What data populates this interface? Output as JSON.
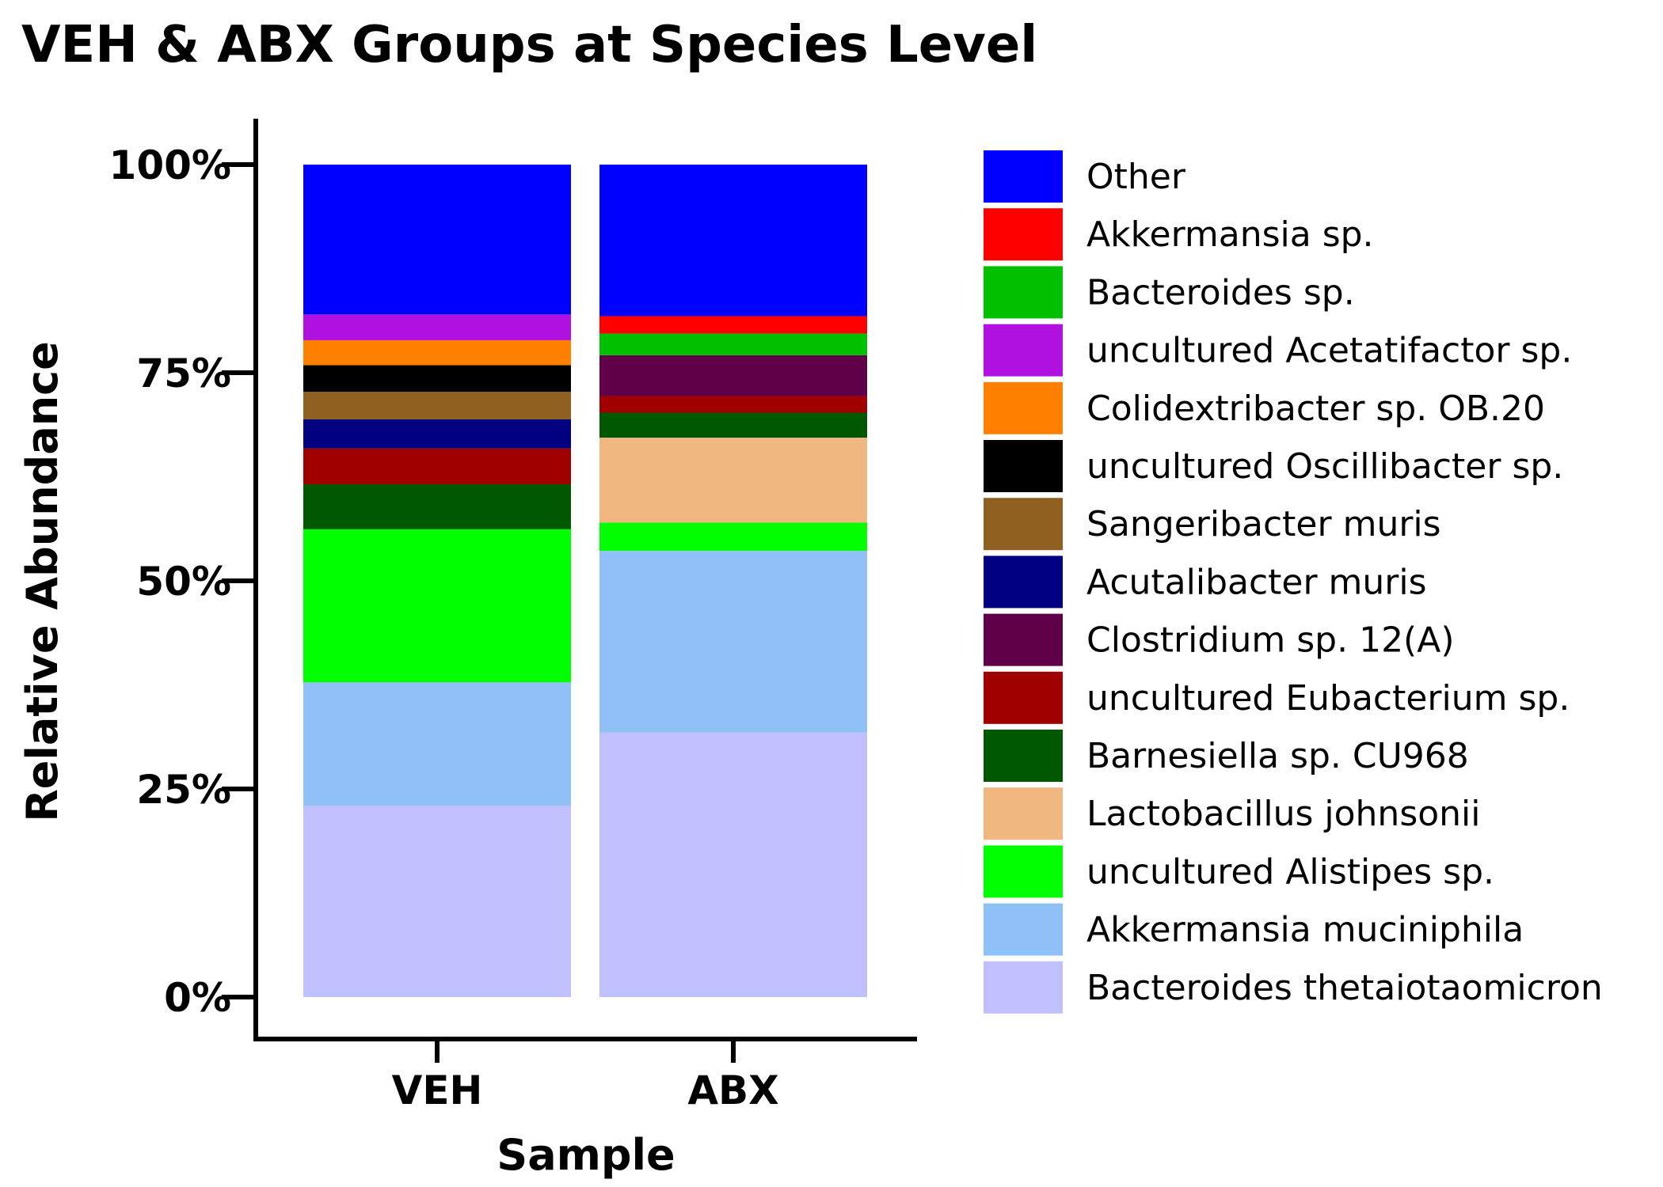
{
  "chart_data": {
    "type": "bar",
    "stacked": true,
    "title": "VEH & ABX Groups at Species Level",
    "xlabel": "Sample",
    "ylabel": "Relative Abundance",
    "ylim": [
      0,
      100
    ],
    "yticks": [
      "0%",
      "25%",
      "50%",
      "75%",
      "100%"
    ],
    "ytick_values": [
      0,
      25,
      50,
      75,
      100
    ],
    "categories": [
      "VEH",
      "ABX"
    ],
    "legend_position": "right",
    "series": [
      {
        "name": "Bacteroides thetaiotaomicron",
        "color": "#c0c0ff",
        "values": [
          23.0,
          31.8
        ]
      },
      {
        "name": "Akkermansia muciniphila",
        "color": "#90c0f8",
        "values": [
          14.8,
          21.8
        ]
      },
      {
        "name": "uncultured Alistipes sp.",
        "color": "#00ff00",
        "values": [
          18.4,
          3.4
        ]
      },
      {
        "name": "Lactobacillus johnsonii",
        "color": "#f0b880",
        "values": [
          0.0,
          10.2
        ]
      },
      {
        "name": "Barnesiella sp. CU968",
        "color": "#005800",
        "values": [
          5.4,
          3.0
        ]
      },
      {
        "name": "uncultured Eubacterium sp.",
        "color": "#a00000",
        "values": [
          4.3,
          2.0
        ]
      },
      {
        "name": "Clostridium sp. 12(A)",
        "color": "#600048",
        "values": [
          0.0,
          4.9
        ]
      },
      {
        "name": "Acutalibacter muris",
        "color": "#000080",
        "values": [
          3.5,
          0.0
        ]
      },
      {
        "name": "Sangeribacter muris",
        "color": "#906020",
        "values": [
          3.3,
          0.0
        ]
      },
      {
        "name": "uncultured Oscillibacter sp.",
        "color": "#000000",
        "values": [
          3.2,
          0.0
        ]
      },
      {
        "name": "Colidextribacter sp. OB.20",
        "color": "#ff8000",
        "values": [
          3.0,
          0.0
        ]
      },
      {
        "name": "uncultured Acetatifactor sp.",
        "color": "#b010e0",
        "values": [
          3.1,
          0.0
        ]
      },
      {
        "name": "Bacteroides sp.",
        "color": "#00c000",
        "values": [
          0.0,
          2.6
        ]
      },
      {
        "name": "Akkermansia sp.",
        "color": "#ff0000",
        "values": [
          0.0,
          2.1
        ]
      },
      {
        "name": "Other",
        "color": "#0000ff",
        "values": [
          18.0,
          18.2
        ]
      }
    ]
  }
}
